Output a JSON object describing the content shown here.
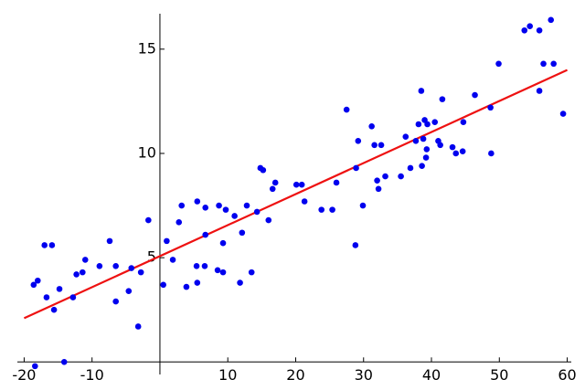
{
  "chart_data": {
    "type": "scatter",
    "x": [
      -18.4,
      -14.1,
      -18.6,
      -18.0,
      -17.0,
      -15.9,
      -16.7,
      -15.6,
      -14.8,
      -12.8,
      -12.3,
      -11.4,
      -11.0,
      -8.9,
      -7.4,
      -6.5,
      -6.5,
      -4.6,
      -4.2,
      -3.2,
      -2.8,
      -1.7,
      0.5,
      1.0,
      1.9,
      2.8,
      3.2,
      3.9,
      5.4,
      5.5,
      5.5,
      6.6,
      6.7,
      6.7,
      8.5,
      8.7,
      9.3,
      9.3,
      9.7,
      11.0,
      11.8,
      12.1,
      12.8,
      13.5,
      14.3,
      14.8,
      15.2,
      16.0,
      16.6,
      17.0,
      20.1,
      20.9,
      21.3,
      23.8,
      25.4,
      26.0,
      27.5,
      28.8,
      28.9,
      29.2,
      29.9,
      31.2,
      31.6,
      32.0,
      32.2,
      32.6,
      33.2,
      35.5,
      36.2,
      36.9,
      37.7,
      38.1,
      38.5,
      38.6,
      38.8,
      39.0,
      39.2,
      39.3,
      39.4,
      40.5,
      41.0,
      41.3,
      41.6,
      43.1,
      43.6,
      44.6,
      44.7,
      46.4,
      48.7,
      48.8,
      49.9,
      53.7,
      54.5,
      55.9,
      55.9,
      56.5,
      57.6,
      58.0,
      59.4
    ],
    "values": [
      -0.2,
      0.0,
      3.7,
      3.9,
      5.6,
      5.6,
      3.1,
      2.5,
      3.5,
      3.1,
      4.2,
      4.3,
      4.9,
      4.6,
      5.8,
      4.6,
      2.9,
      3.4,
      4.5,
      1.7,
      4.3,
      6.8,
      3.7,
      5.8,
      4.9,
      6.7,
      7.5,
      3.6,
      4.6,
      3.8,
      7.7,
      4.6,
      7.4,
      6.1,
      4.4,
      7.5,
      5.7,
      4.3,
      7.3,
      7.0,
      3.8,
      6.2,
      7.5,
      4.3,
      7.2,
      9.3,
      9.2,
      6.8,
      8.3,
      8.6,
      8.5,
      8.5,
      7.7,
      7.3,
      7.3,
      8.6,
      12.1,
      5.6,
      9.3,
      10.6,
      7.5,
      11.3,
      10.4,
      8.7,
      8.3,
      10.4,
      8.9,
      8.9,
      10.8,
      9.3,
      10.6,
      11.4,
      13.0,
      9.4,
      10.7,
      11.6,
      9.8,
      10.2,
      11.4,
      11.5,
      10.6,
      10.4,
      12.6,
      10.3,
      10.0,
      10.1,
      11.5,
      12.8,
      12.2,
      10.0,
      14.3,
      15.9,
      16.1,
      15.9,
      13.0,
      14.3,
      16.4,
      14.3,
      11.9
    ],
    "color": "#0000ee",
    "fit_line": {
      "x": [
        -20,
        60
      ],
      "values": [
        2.1,
        14.0
      ],
      "color": "#ee1111"
    },
    "xlim": [
      -21,
      60.6
    ],
    "ylim": [
      -0.6,
      16.7
    ],
    "xticks": [
      -20,
      -10,
      10,
      20,
      30,
      40,
      50,
      60
    ],
    "yticks": [
      5,
      10,
      15
    ]
  }
}
